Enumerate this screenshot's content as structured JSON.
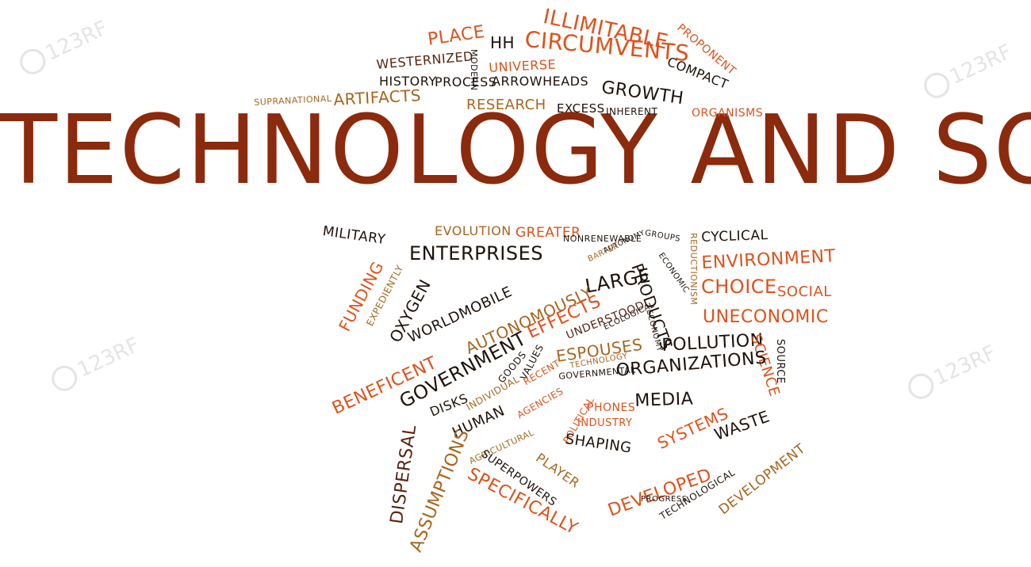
{
  "title": "TECHNOLOGY AND SOCIETY",
  "watermark": "123RF",
  "colors": {
    "dark_red": "#8b2a0c",
    "black": "#1e120a",
    "orange": "#e2501a",
    "tan": "#a8651e",
    "brown": "#5a2410"
  },
  "words": [
    "ILLIMITABLE",
    "PROPONENT",
    "PLACE",
    "HH",
    "CIRCUMVENTS",
    "WESTERNIZED",
    "MODERN",
    "UNIVERSE",
    "COMPACT",
    "HISTORY",
    "PROCESS",
    "ARROWHEADS",
    "GROWTH",
    "SUPRANATIONAL",
    "ARTIFACTS",
    "RESEARCH",
    "EXCESS",
    "INHERENT",
    "ORGANISMS",
    "MILITARY",
    "EVOLUTION",
    "GREATER",
    "NONRENEWABLE",
    "GROUPS",
    "CYCLICAL",
    "ENTERPRISES",
    "BARTER",
    "AUTONOMY",
    "ECONOMIC",
    "REDUCTIONISM",
    "ENVIRONMENT",
    "FUNDING",
    "EXPEDIENTLY",
    "LARGE",
    "PRODUCTS",
    "CHOICE",
    "SOCIAL",
    "OXYGEN",
    "WORLDMOBILE",
    "AUTONOMOUSLY",
    "UNDERSTOOD",
    "ECOLOGICAL",
    "UNECONOMIC",
    "EFFECTS",
    "ECONOMY",
    "BENEFICENT",
    "GOVERNMENT",
    "VALUES",
    "ESPOUSES",
    "TECHNOLOGY",
    "POLLUTION",
    "SCIENCE",
    "SOURCE",
    "GOODS",
    "RECENT",
    "GOVERNMENTAL",
    "INDIVIDUAL",
    "ORGANIZATIONS",
    "DISKS",
    "AGENCIES",
    "POLITICAL",
    "MEDIA",
    "HUMAN",
    "PHONES",
    "INDUSTRY",
    "DISPERSAL",
    "AGRICULTURAL",
    "SHAPING",
    "SYSTEMS",
    "WASTE",
    "ASSUMPTIONS",
    "SUPERPOWERS",
    "PLAYER",
    "DEVELOPMENT",
    "SPECIFICALLY",
    "DEVELOPED",
    "PROGRESS",
    "TECHNOLOGICAL"
  ]
}
